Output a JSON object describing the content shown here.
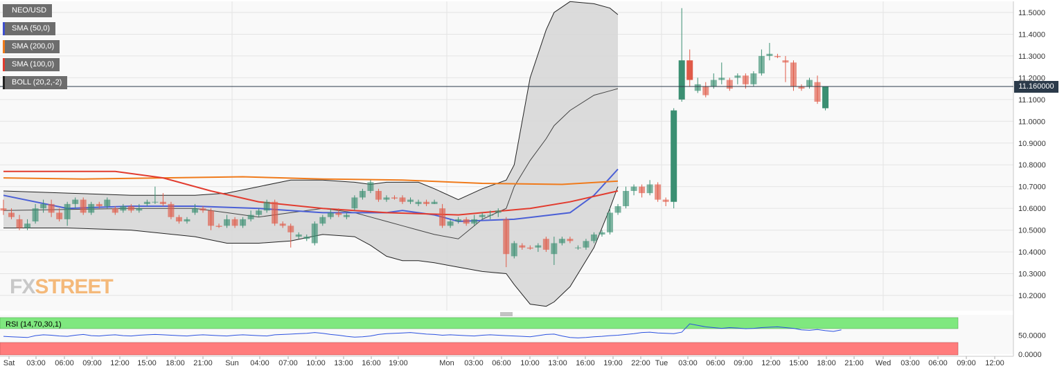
{
  "legend": {
    "pair": "NEO/USD",
    "sma50": "SMA (50,0)",
    "sma200": "SMA (200,0)",
    "sma100": "SMA (100,0)",
    "boll": "BOLL (20,2,-2)"
  },
  "colors": {
    "sma50": "#4a5fd6",
    "sma200": "#f07a1a",
    "sma100": "#e23b2e",
    "boll_fill": "#d6d6d6",
    "up": "#3b8f72",
    "down": "#e05a48",
    "rsi_upper": "#7fe87f",
    "rsi_lower": "#ff7c7c"
  },
  "current_price": "11.160000",
  "logo": {
    "part1": "FX",
    "part2": "STREET"
  },
  "rsi": {
    "label": "RSI (14,70,30,1)",
    "ticks": [
      "50.0000",
      "0.0000"
    ]
  },
  "chart_data": {
    "type": "line",
    "pair": "NEO/USD",
    "ylim": [
      10.14,
      11.55
    ],
    "y_ticks": [
      "11.5000",
      "11.4000",
      "11.3000",
      "11.2000",
      "11.1000",
      "11.0000",
      "10.9000",
      "10.8000",
      "10.7000",
      "10.6000",
      "10.5000",
      "10.4000",
      "10.3000",
      "10.2000"
    ],
    "x_labels": [
      "Sat",
      "03:00",
      "06:00",
      "09:00",
      "12:00",
      "15:00",
      "18:00",
      "21:00",
      "Sun",
      "04:00",
      "07:00",
      "10:00",
      "13:00",
      "16:00",
      "19:00",
      "Mon",
      "03:00",
      "06:00",
      "10:00",
      "13:00",
      "16:00",
      "19:00",
      "22:00",
      "Tue",
      "03:00",
      "06:00",
      "09:00",
      "12:00",
      "15:00",
      "18:00",
      "21:00",
      "Wed",
      "03:00",
      "06:00",
      "09:00",
      "12:00"
    ],
    "current_price": 11.16,
    "series": [
      {
        "name": "SMA (50,0)",
        "x": [
          0,
          8,
          16,
          24,
          32,
          40,
          48,
          50,
          54,
          57,
          64,
          71,
          74,
          77
        ],
        "y": [
          10.66,
          10.6,
          10.61,
          10.61,
          10.6,
          10.58,
          10.58,
          10.59,
          10.57,
          10.54,
          10.55,
          10.58,
          10.66,
          10.78
        ]
      },
      {
        "name": "SMA (200,0)",
        "x": [
          0,
          10,
          20,
          30,
          40,
          50,
          60,
          70,
          77
        ],
        "y": [
          10.74,
          10.735,
          10.74,
          10.745,
          10.735,
          10.73,
          10.715,
          10.71,
          10.725
        ]
      },
      {
        "name": "SMA (100,0)",
        "x": [
          0,
          10,
          14,
          20,
          26,
          32,
          40,
          48,
          57,
          60,
          66,
          71,
          77
        ],
        "y": [
          10.77,
          10.77,
          10.77,
          10.74,
          10.68,
          10.63,
          10.6,
          10.58,
          10.57,
          10.58,
          10.6,
          10.63,
          10.68
        ]
      }
    ],
    "bollinger": {
      "name": "BOLL (20,2,-2)",
      "x": [
        0,
        8,
        16,
        24,
        28,
        32,
        36,
        40,
        44,
        46,
        48,
        50,
        52,
        54,
        57,
        60,
        63,
        64,
        66,
        68,
        69,
        71,
        74,
        76,
        77
      ],
      "upper": [
        10.68,
        10.67,
        10.66,
        10.66,
        10.67,
        10.7,
        10.73,
        10.73,
        10.72,
        10.71,
        10.72,
        10.72,
        10.72,
        10.69,
        10.64,
        10.69,
        10.73,
        10.8,
        11.2,
        11.42,
        11.5,
        11.55,
        11.54,
        11.52,
        11.49
      ],
      "middle": [
        10.59,
        10.595,
        10.6,
        10.6,
        10.58,
        10.56,
        10.58,
        10.6,
        10.58,
        10.56,
        10.54,
        10.52,
        10.5,
        10.48,
        10.46,
        10.55,
        10.6,
        10.7,
        10.82,
        10.92,
        10.98,
        11.05,
        11.12,
        11.14,
        11.15
      ],
      "lower": [
        10.51,
        10.51,
        10.5,
        10.47,
        10.44,
        10.44,
        10.45,
        10.48,
        10.47,
        10.43,
        10.38,
        10.36,
        10.36,
        10.35,
        10.33,
        10.31,
        10.3,
        10.25,
        10.16,
        10.15,
        10.17,
        10.24,
        10.42,
        10.6,
        10.7
      ]
    },
    "candles": [
      {
        "o": 10.6,
        "h": 10.64,
        "l": 10.57,
        "c": 10.59
      },
      {
        "o": 10.58,
        "h": 10.6,
        "l": 10.55,
        "c": 10.56
      },
      {
        "o": 10.55,
        "h": 10.57,
        "l": 10.5,
        "c": 10.51
      },
      {
        "o": 10.51,
        "h": 10.55,
        "l": 10.5,
        "c": 10.53
      },
      {
        "o": 10.54,
        "h": 10.62,
        "l": 10.53,
        "c": 10.6
      },
      {
        "o": 10.6,
        "h": 10.64,
        "l": 10.58,
        "c": 10.62
      },
      {
        "o": 10.62,
        "h": 10.64,
        "l": 10.56,
        "c": 10.58
      },
      {
        "o": 10.58,
        "h": 10.6,
        "l": 10.54,
        "c": 10.55
      },
      {
        "o": 10.55,
        "h": 10.63,
        "l": 10.52,
        "c": 10.62
      },
      {
        "o": 10.62,
        "h": 10.65,
        "l": 10.6,
        "c": 10.64
      },
      {
        "o": 10.64,
        "h": 10.65,
        "l": 10.57,
        "c": 10.58
      },
      {
        "o": 10.58,
        "h": 10.63,
        "l": 10.57,
        "c": 10.62
      },
      {
        "o": 10.62,
        "h": 10.63,
        "l": 10.6,
        "c": 10.61
      },
      {
        "o": 10.61,
        "h": 10.65,
        "l": 10.6,
        "c": 10.64
      },
      {
        "o": 10.6,
        "h": 10.61,
        "l": 10.57,
        "c": 10.58
      },
      {
        "o": 10.59,
        "h": 10.62,
        "l": 10.58,
        "c": 10.61
      },
      {
        "o": 10.61,
        "h": 10.62,
        "l": 10.58,
        "c": 10.59
      },
      {
        "o": 10.59,
        "h": 10.62,
        "l": 10.58,
        "c": 10.6
      },
      {
        "o": 10.62,
        "h": 10.64,
        "l": 10.61,
        "c": 10.63
      },
      {
        "o": 10.63,
        "h": 10.7,
        "l": 10.62,
        "c": 10.63
      },
      {
        "o": 10.63,
        "h": 10.67,
        "l": 10.61,
        "c": 10.62
      },
      {
        "o": 10.62,
        "h": 10.63,
        "l": 10.55,
        "c": 10.56
      },
      {
        "o": 10.56,
        "h": 10.57,
        "l": 10.53,
        "c": 10.54
      },
      {
        "o": 10.54,
        "h": 10.56,
        "l": 10.53,
        "c": 10.55
      },
      {
        "o": 10.58,
        "h": 10.62,
        "l": 10.57,
        "c": 10.6
      },
      {
        "o": 10.6,
        "h": 10.61,
        "l": 10.58,
        "c": 10.59
      },
      {
        "o": 10.59,
        "h": 10.6,
        "l": 10.5,
        "c": 10.52
      },
      {
        "o": 10.52,
        "h": 10.53,
        "l": 10.51,
        "c": 10.515
      },
      {
        "o": 10.52,
        "h": 10.57,
        "l": 10.51,
        "c": 10.55
      },
      {
        "o": 10.55,
        "h": 10.56,
        "l": 10.51,
        "c": 10.52
      },
      {
        "o": 10.52,
        "h": 10.56,
        "l": 10.51,
        "c": 10.55
      },
      {
        "o": 10.55,
        "h": 10.59,
        "l": 10.54,
        "c": 10.57
      },
      {
        "o": 10.57,
        "h": 10.6,
        "l": 10.56,
        "c": 10.59
      },
      {
        "o": 10.59,
        "h": 10.64,
        "l": 10.58,
        "c": 10.63
      },
      {
        "o": 10.63,
        "h": 10.64,
        "l": 10.52,
        "c": 10.53
      },
      {
        "o": 10.53,
        "h": 10.54,
        "l": 10.51,
        "c": 10.52
      },
      {
        "o": 10.52,
        "h": 10.53,
        "l": 10.42,
        "c": 10.49
      },
      {
        "o": 10.47,
        "h": 10.49,
        "l": 10.46,
        "c": 10.48
      },
      {
        "o": 10.46,
        "h": 10.48,
        "l": 10.45,
        "c": 10.47
      },
      {
        "o": 10.44,
        "h": 10.54,
        "l": 10.43,
        "c": 10.53
      },
      {
        "o": 10.53,
        "h": 10.57,
        "l": 10.52,
        "c": 10.56
      },
      {
        "o": 10.56,
        "h": 10.6,
        "l": 10.55,
        "c": 10.58
      },
      {
        "o": 10.58,
        "h": 10.6,
        "l": 10.56,
        "c": 10.57
      },
      {
        "o": 10.56,
        "h": 10.58,
        "l": 10.55,
        "c": 10.57
      },
      {
        "o": 10.6,
        "h": 10.66,
        "l": 10.59,
        "c": 10.65
      },
      {
        "o": 10.65,
        "h": 10.69,
        "l": 10.64,
        "c": 10.68
      },
      {
        "o": 10.68,
        "h": 10.73,
        "l": 10.67,
        "c": 10.72
      },
      {
        "o": 10.68,
        "h": 10.69,
        "l": 10.63,
        "c": 10.64
      },
      {
        "o": 10.64,
        "h": 10.66,
        "l": 10.63,
        "c": 10.65
      },
      {
        "o": 10.65,
        "h": 10.66,
        "l": 10.64,
        "c": 10.645
      },
      {
        "o": 10.65,
        "h": 10.66,
        "l": 10.62,
        "c": 10.63
      },
      {
        "o": 10.63,
        "h": 10.65,
        "l": 10.62,
        "c": 10.64
      },
      {
        "o": 10.62,
        "h": 10.64,
        "l": 10.61,
        "c": 10.63
      },
      {
        "o": 10.63,
        "h": 10.64,
        "l": 10.61,
        "c": 10.62
      },
      {
        "o": 10.62,
        "h": 10.64,
        "l": 10.62,
        "c": 10.63
      },
      {
        "o": 10.6,
        "h": 10.62,
        "l": 10.51,
        "c": 10.52
      },
      {
        "o": 10.52,
        "h": 10.55,
        "l": 10.51,
        "c": 10.54
      },
      {
        "o": 10.54,
        "h": 10.56,
        "l": 10.53,
        "c": 10.55
      },
      {
        "o": 10.55,
        "h": 10.56,
        "l": 10.52,
        "c": 10.53
      },
      {
        "o": 10.53,
        "h": 10.57,
        "l": 10.52,
        "c": 10.55
      },
      {
        "o": 10.56,
        "h": 10.58,
        "l": 10.55,
        "c": 10.57
      },
      {
        "o": 10.57,
        "h": 10.59,
        "l": 10.55,
        "c": 10.57
      },
      {
        "o": 10.58,
        "h": 10.6,
        "l": 10.56,
        "c": 10.59
      },
      {
        "o": 10.55,
        "h": 10.56,
        "l": 10.33,
        "c": 10.39
      },
      {
        "o": 10.38,
        "h": 10.45,
        "l": 10.37,
        "c": 10.44
      },
      {
        "o": 10.43,
        "h": 10.44,
        "l": 10.41,
        "c": 10.42
      },
      {
        "o": 10.42,
        "h": 10.43,
        "l": 10.41,
        "c": 10.415
      },
      {
        "o": 10.42,
        "h": 10.44,
        "l": 10.4,
        "c": 10.43
      },
      {
        "o": 10.46,
        "h": 10.47,
        "l": 10.4,
        "c": 10.41
      },
      {
        "o": 10.39,
        "h": 10.47,
        "l": 10.34,
        "c": 10.44
      },
      {
        "o": 10.44,
        "h": 10.47,
        "l": 10.43,
        "c": 10.46
      },
      {
        "o": 10.46,
        "h": 10.47,
        "l": 10.44,
        "c": 10.45
      },
      {
        "o": 10.42,
        "h": 10.43,
        "l": 10.41,
        "c": 10.42
      },
      {
        "o": 10.42,
        "h": 10.46,
        "l": 10.41,
        "c": 10.45
      },
      {
        "o": 10.45,
        "h": 10.49,
        "l": 10.44,
        "c": 10.48
      },
      {
        "o": 10.48,
        "h": 10.5,
        "l": 10.47,
        "c": 10.49
      },
      {
        "o": 10.49,
        "h": 10.6,
        "l": 10.48,
        "c": 10.58
      },
      {
        "o": 10.58,
        "h": 10.62,
        "l": 10.57,
        "c": 10.61
      },
      {
        "o": 10.61,
        "h": 10.7,
        "l": 10.6,
        "c": 10.68
      },
      {
        "o": 10.68,
        "h": 10.71,
        "l": 10.66,
        "c": 10.7
      },
      {
        "o": 10.7,
        "h": 10.71,
        "l": 10.65,
        "c": 10.67
      },
      {
        "o": 10.67,
        "h": 10.73,
        "l": 10.66,
        "c": 10.71
      },
      {
        "o": 10.71,
        "h": 10.72,
        "l": 10.63,
        "c": 10.64
      },
      {
        "o": 10.64,
        "h": 10.65,
        "l": 10.61,
        "c": 10.63
      },
      {
        "o": 10.63,
        "h": 11.06,
        "l": 10.6,
        "c": 11.05
      },
      {
        "o": 11.1,
        "h": 11.52,
        "l": 11.09,
        "c": 11.28
      },
      {
        "o": 11.28,
        "h": 11.33,
        "l": 11.16,
        "c": 11.19
      },
      {
        "o": 11.14,
        "h": 11.2,
        "l": 11.13,
        "c": 11.17
      },
      {
        "o": 11.16,
        "h": 11.18,
        "l": 11.11,
        "c": 11.12
      },
      {
        "o": 11.16,
        "h": 11.22,
        "l": 11.15,
        "c": 11.19
      },
      {
        "o": 11.19,
        "h": 11.27,
        "l": 11.17,
        "c": 11.2
      },
      {
        "o": 11.19,
        "h": 11.2,
        "l": 11.14,
        "c": 11.15
      },
      {
        "o": 11.2,
        "h": 11.22,
        "l": 11.17,
        "c": 11.21
      },
      {
        "o": 11.21,
        "h": 11.22,
        "l": 11.15,
        "c": 11.17
      },
      {
        "o": 11.17,
        "h": 11.23,
        "l": 11.16,
        "c": 11.22
      },
      {
        "o": 11.22,
        "h": 11.33,
        "l": 11.21,
        "c": 11.3
      },
      {
        "o": 11.3,
        "h": 11.36,
        "l": 11.28,
        "c": 11.31
      },
      {
        "o": 11.3,
        "h": 11.31,
        "l": 11.29,
        "c": 11.295
      },
      {
        "o": 11.28,
        "h": 11.3,
        "l": 11.18,
        "c": 11.27
      },
      {
        "o": 11.27,
        "h": 11.28,
        "l": 11.14,
        "c": 11.16
      },
      {
        "o": 11.16,
        "h": 11.17,
        "l": 11.14,
        "c": 11.15
      },
      {
        "o": 11.16,
        "h": 11.2,
        "l": 11.15,
        "c": 11.19
      },
      {
        "o": 11.18,
        "h": 11.21,
        "l": 11.08,
        "c": 11.09
      },
      {
        "o": 11.06,
        "h": 11.16,
        "l": 11.05,
        "c": 11.16
      }
    ],
    "rsi_values": [
      47,
      46,
      45,
      44,
      49,
      51,
      50,
      48,
      47,
      50,
      52,
      49,
      48,
      50,
      51,
      49,
      48,
      50,
      51,
      52,
      51,
      50,
      49,
      48,
      50,
      51,
      50,
      49,
      48,
      50,
      51,
      50,
      49,
      48,
      51,
      52,
      53,
      54,
      55,
      57,
      55,
      52,
      50,
      47,
      45,
      46,
      48,
      52,
      54,
      55,
      56,
      57,
      55,
      53,
      52,
      50,
      51,
      50,
      49,
      48,
      50,
      51,
      50,
      49,
      48,
      47,
      46,
      49,
      52,
      53,
      48,
      44,
      43,
      44,
      46,
      47,
      49,
      50,
      52,
      54,
      57,
      58,
      56,
      55,
      54,
      58,
      80,
      76,
      72,
      70,
      68,
      70,
      69,
      67,
      68,
      70,
      71,
      72,
      70,
      68,
      64,
      63,
      65,
      62,
      60,
      64
    ]
  }
}
